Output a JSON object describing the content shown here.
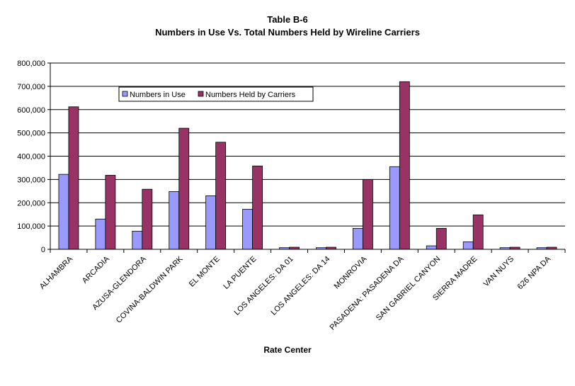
{
  "chart_data": {
    "type": "bar",
    "title": "Table B-6",
    "subtitle": "Numbers in Use Vs. Total Numbers Held by Wireline Carriers",
    "xlabel": "Rate Center",
    "ylabel": "",
    "ylim": [
      0,
      800000
    ],
    "yticks": [
      "0",
      "100,000",
      "200,000",
      "300,000",
      "400,000",
      "500,000",
      "600,000",
      "700,000",
      "800,000"
    ],
    "ytick_values": [
      0,
      100000,
      200000,
      300000,
      400000,
      500000,
      600000,
      700000,
      800000
    ],
    "grid": true,
    "legend_position": "top-left",
    "categories": [
      "ALHAMBRA",
      "ARCADIA",
      "AZUSA-GLENDORA",
      "COVINA-BALDWIN PARK",
      "EL MONTE",
      "LA PUENTE",
      "LOS ANGELES: DA 01",
      "LOS ANGELES: DA 14",
      "MONROVIA",
      "PASADENA: PASADENA DA",
      "SAN GABRIEL CANYON",
      "SIERRA MADRE",
      "VAN NUYS",
      "626 NPA DA"
    ],
    "series": [
      {
        "name": "Numbers in Use",
        "color": "#9999ff",
        "values": [
          322000,
          130000,
          78000,
          248000,
          230000,
          172000,
          7000,
          7000,
          90000,
          355000,
          15000,
          32000,
          7000,
          7000
        ]
      },
      {
        "name": "Numbers Held by Carriers",
        "color": "#993366",
        "values": [
          612000,
          318000,
          258000,
          520000,
          460000,
          358000,
          9000,
          9000,
          300000,
          720000,
          90000,
          148000,
          9000,
          9000
        ]
      }
    ]
  }
}
